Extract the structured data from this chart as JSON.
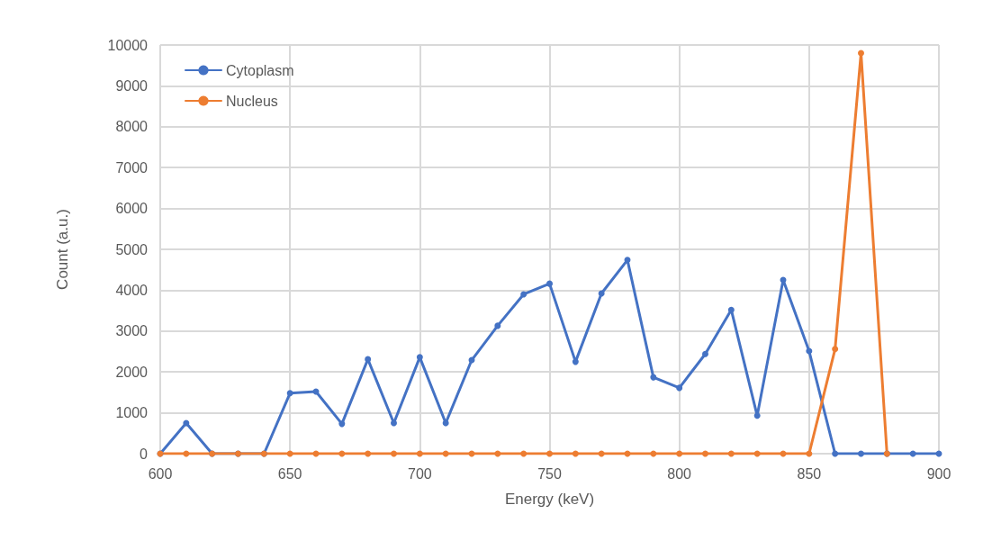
{
  "chart_data": {
    "type": "line",
    "xlabel": "Energy (keV)",
    "ylabel": "Count (a.u.)",
    "x": [
      600,
      610,
      620,
      630,
      640,
      650,
      660,
      670,
      680,
      690,
      700,
      710,
      720,
      730,
      740,
      750,
      760,
      770,
      780,
      790,
      800,
      810,
      820,
      830,
      840,
      850,
      860,
      870,
      880,
      890,
      900
    ],
    "series": [
      {
        "name": "Cytoplasm",
        "color": "#4472c4",
        "values": [
          0,
          750,
          0,
          0,
          0,
          1480,
          1520,
          730,
          2310,
          750,
          2360,
          750,
          2290,
          3130,
          3900,
          4160,
          2250,
          3920,
          4740,
          1870,
          1610,
          2440,
          3520,
          930,
          4250,
          2510,
          0,
          0,
          0,
          0,
          0
        ]
      },
      {
        "name": "Nucleus",
        "color": "#ed7d31",
        "values": [
          0,
          0,
          0,
          0,
          0,
          0,
          0,
          0,
          0,
          0,
          0,
          0,
          0,
          0,
          0,
          0,
          0,
          0,
          0,
          0,
          0,
          0,
          0,
          0,
          0,
          0,
          2560,
          9800,
          0,
          null,
          null
        ]
      }
    ],
    "xlim": [
      600,
      900
    ],
    "xticks": [
      600,
      650,
      700,
      750,
      800,
      850,
      900
    ],
    "ylim": [
      0,
      10000
    ],
    "yticks": [
      0,
      1000,
      2000,
      3000,
      4000,
      5000,
      6000,
      7000,
      8000,
      9000,
      10000
    ],
    "grid": true,
    "legend": "top left",
    "marker": "circle",
    "line_style": "solid"
  }
}
